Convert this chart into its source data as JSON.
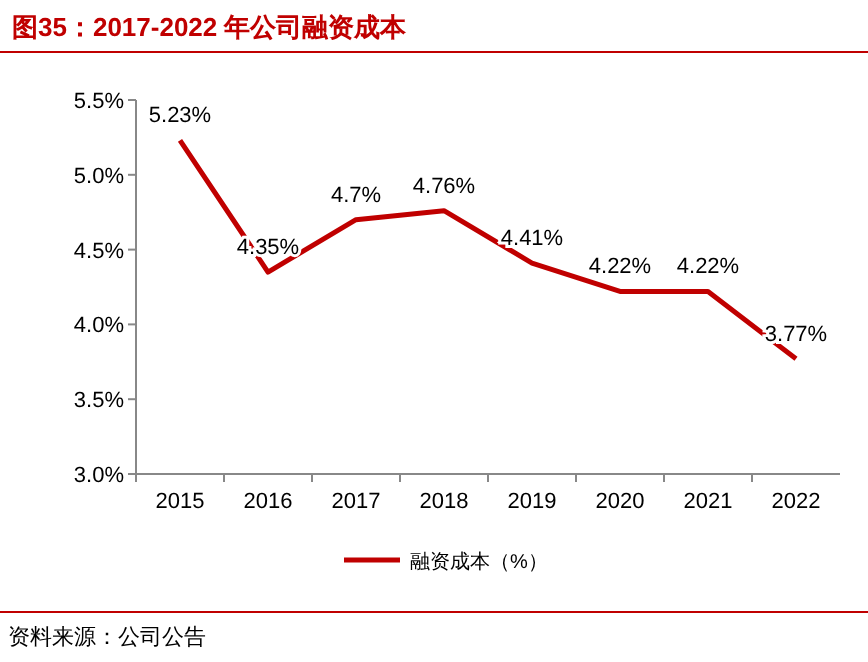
{
  "chart_data": {
    "type": "line",
    "title": "图35：2017-2022 年公司融资成本",
    "categories": [
      "2015",
      "2016",
      "2017",
      "2018",
      "2019",
      "2020",
      "2021",
      "2022"
    ],
    "series": [
      {
        "name": "融资成本（%）",
        "color": "#c00000",
        "values": [
          5.23,
          4.35,
          4.7,
          4.76,
          4.41,
          4.22,
          4.22,
          3.77
        ],
        "value_labels": [
          "5.23%",
          "4.35%",
          "4.7%",
          "4.76%",
          "4.41%",
          "4.22%",
          "4.22%",
          "3.77%"
        ]
      }
    ],
    "ylim": [
      3.0,
      5.5
    ],
    "yticks": [
      {
        "value": 3.0,
        "label": "3.0%"
      },
      {
        "value": 3.5,
        "label": "3.5%"
      },
      {
        "value": 4.0,
        "label": "4.0%"
      },
      {
        "value": 4.5,
        "label": "4.5%"
      },
      {
        "value": 5.0,
        "label": "5.0%"
      },
      {
        "value": 5.5,
        "label": "5.5%"
      }
    ],
    "grid": false,
    "legend": "bottom",
    "marker": "none",
    "line_style": "solid",
    "annotations": [
      "资料来源：公司公告"
    ]
  }
}
